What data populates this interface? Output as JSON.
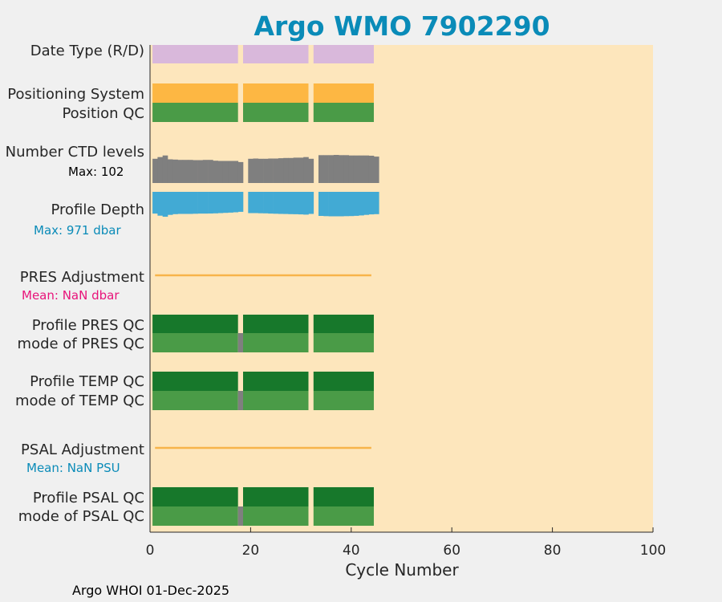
{
  "chart_data": {
    "type": "bar",
    "title": "Argo WMO 7902290",
    "xlabel": "Cycle Number",
    "xlim": [
      0,
      100
    ],
    "xticks": [
      0,
      20,
      40,
      60,
      80,
      100
    ],
    "gaps_after_cycles": [
      17,
      31
    ],
    "last_cycle": 44,
    "colors": {
      "background": "#fde6bc",
      "date_type": "#d9b8db",
      "positioning_system": "#fdb743",
      "qc_good": "#4a9b47",
      "qc_profile_good": "#17782b",
      "qc_mode_flag": "#7f7f7f",
      "ctd_levels": "#7f7f7f",
      "profile_depth": "#42aad4",
      "adjustment_line": "#f7b44a",
      "title": "#0a8bb8",
      "pres_mean": "#e8147a",
      "psal_mean": "#0a8bb8"
    },
    "rows": {
      "date_type": "Date Type (R/D)",
      "positioning_system": "Positioning System",
      "position_qc": "Position QC",
      "ctd_levels": "Number CTD levels",
      "ctd_max": "Max: 102",
      "profile_depth": "Profile Depth",
      "depth_max": "Max:  971 dbar",
      "pres_adjustment": "PRES Adjustment",
      "pres_mean": "Mean:  NaN dbar",
      "profile_pres_qc": "Profile PRES QC",
      "mode_pres_qc": "mode of PRES QC",
      "profile_temp_qc": "Profile TEMP QC",
      "mode_temp_qc": "mode of TEMP QC",
      "psal_adjustment": "PSAL Adjustment",
      "psal_mean": "Mean:  NaN PSU",
      "profile_psal_qc": "Profile PSAL QC",
      "mode_psal_qc": "mode of PSAL QC"
    },
    "mode_qc_flagged_cycle": 18,
    "ctd_levels_values": [
      88,
      94,
      100,
      86,
      85,
      84,
      84,
      84,
      83,
      83,
      84,
      84,
      81,
      80,
      80,
      80,
      80,
      76,
      0,
      88,
      89,
      88,
      88,
      89,
      89,
      90,
      91,
      91,
      92,
      92,
      94,
      88,
      0,
      101,
      101,
      101,
      102,
      101,
      101,
      100,
      100,
      100,
      100,
      99,
      96
    ],
    "profile_depth_values": [
      850,
      930,
      971,
      900,
      870,
      860,
      860,
      860,
      855,
      850,
      850,
      845,
      840,
      830,
      820,
      810,
      800,
      780,
      0,
      830,
      830,
      835,
      840,
      850,
      855,
      860,
      865,
      870,
      875,
      880,
      890,
      860,
      0,
      940,
      950,
      955,
      955,
      955,
      950,
      945,
      935,
      920,
      900,
      880,
      870
    ]
  },
  "footer": "Argo WHOI 01-Dec-2025"
}
